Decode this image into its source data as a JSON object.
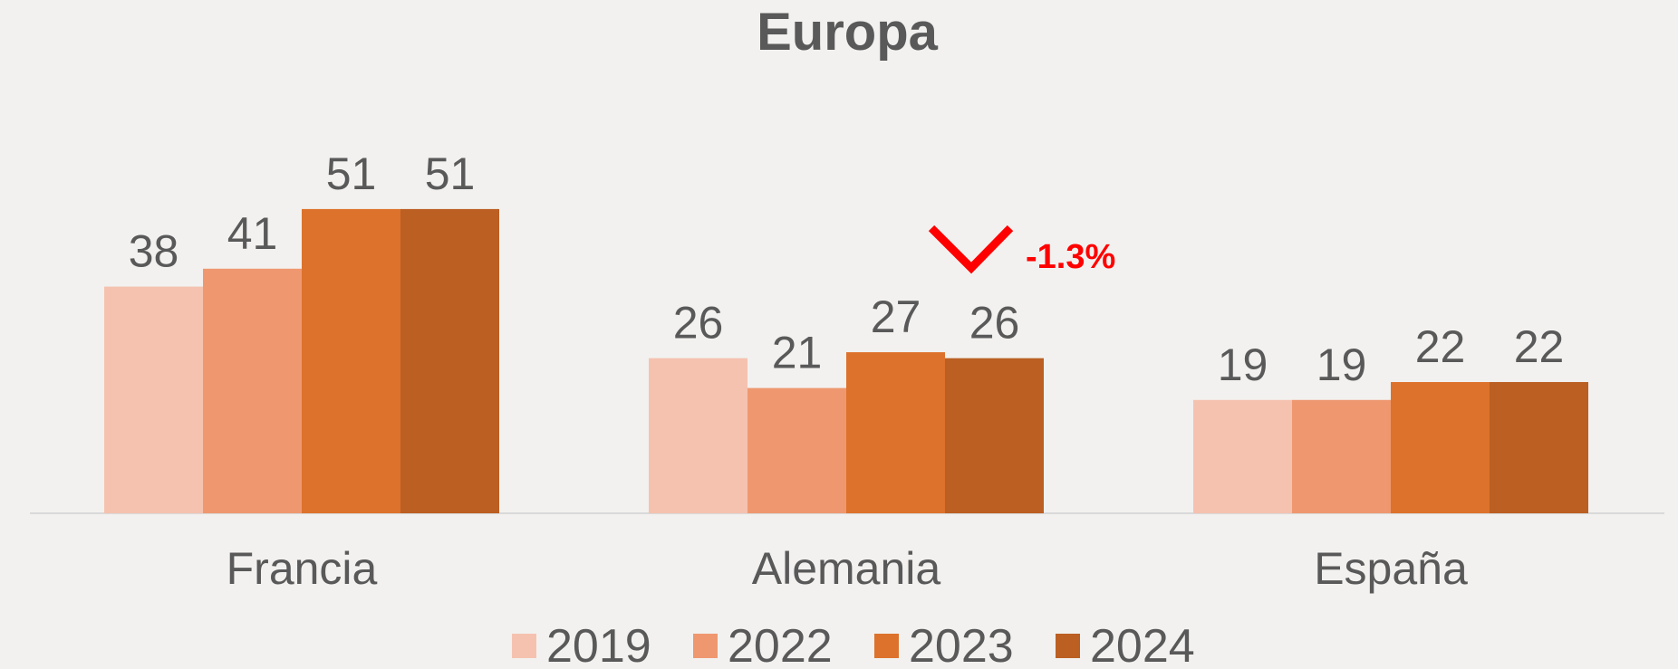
{
  "chart_data": {
    "type": "bar",
    "title": "Europa",
    "categories": [
      "Francia",
      "Alemania",
      "España"
    ],
    "series": [
      {
        "name": "2019",
        "color": "#f5c2b0",
        "values": [
          38,
          26,
          19
        ]
      },
      {
        "name": "2022",
        "color": "#ef9870",
        "values": [
          41,
          21,
          19
        ]
      },
      {
        "name": "2023",
        "color": "#dd722c",
        "values": [
          51,
          27,
          22
        ]
      },
      {
        "name": "2024",
        "color": "#bb5f23",
        "values": [
          51,
          26,
          22
        ]
      }
    ],
    "annotations": [
      "-1.3%"
    ],
    "legend": "bottom"
  }
}
